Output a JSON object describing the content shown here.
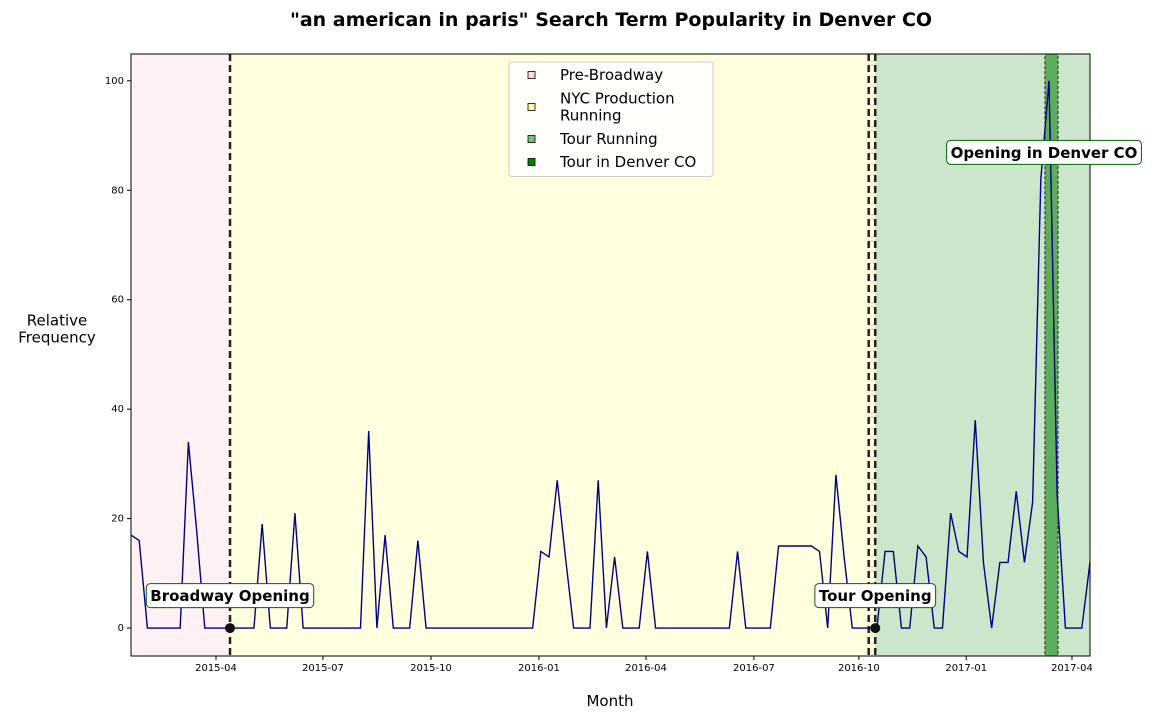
{
  "chart_data": {
    "type": "line",
    "title": "\"an american in paris\" Search Term Popularity in Denver CO",
    "x_label": "Month",
    "y_label": "Relative\nFrequency",
    "xlim": [
      0,
      117
    ],
    "ylim": [
      -5.1,
      104.9
    ],
    "xticks": [
      {
        "value": 10.37,
        "label": "2015-04"
      },
      {
        "value": 23.42,
        "label": "2015-07"
      },
      {
        "value": 36.6,
        "label": "2015-10"
      },
      {
        "value": 49.77,
        "label": "2016-01"
      },
      {
        "value": 62.83,
        "label": "2016-04"
      },
      {
        "value": 76.0,
        "label": "2016-07"
      },
      {
        "value": 88.8,
        "label": "2016-10"
      },
      {
        "value": 101.9,
        "label": "2017-01"
      },
      {
        "value": 114.8,
        "label": "2017-04"
      }
    ],
    "yticks": [
      0,
      20,
      40,
      60,
      80,
      100
    ],
    "color": "#000080",
    "values": [
      17,
      16,
      0,
      0,
      0,
      0,
      0,
      34,
      18,
      0,
      0,
      0,
      0,
      0,
      0,
      0,
      19,
      0,
      0,
      0,
      21,
      0,
      0,
      0,
      0,
      0,
      0,
      0,
      0,
      36,
      0,
      17,
      0,
      0,
      0,
      16,
      0,
      0,
      0,
      0,
      0,
      0,
      0,
      0,
      0,
      0,
      0,
      0,
      0,
      0,
      14,
      13,
      27,
      13,
      0,
      0,
      0,
      27,
      0,
      13,
      0,
      0,
      0,
      14,
      0,
      0,
      0,
      0,
      0,
      0,
      0,
      0,
      0,
      0,
      14,
      0,
      0,
      0,
      0,
      15,
      15,
      15,
      15,
      15,
      14,
      0,
      28,
      13,
      0,
      0,
      0,
      0,
      14,
      14,
      0,
      0,
      15,
      13,
      0,
      0,
      21,
      14,
      13,
      38,
      12,
      0,
      12,
      12,
      25,
      12,
      23,
      82,
      100,
      24,
      0,
      0,
      0,
      12
    ],
    "spans": [
      {
        "name": "Pre-Broadway",
        "color": "#ffc0cb",
        "alpha": 0.22,
        "start": 0,
        "end": 12.08
      },
      {
        "name": "NYC Production\nRunning",
        "color": "#ffff00",
        "alpha": 0.12,
        "start": 12.08,
        "end": 90.8
      },
      {
        "name": "Tour Running",
        "color": "#008000",
        "alpha": 0.2,
        "start": 90.8,
        "end": 117
      },
      {
        "name": "Tour in Denver CO",
        "color": "#008000",
        "alpha": 0.55,
        "start": 111.5,
        "end": 113.1
      }
    ],
    "vlines": [
      12.08,
      90.0,
      90.8
    ],
    "annotations": [
      {
        "text": "Broadway Opening",
        "x": 12.08,
        "y": 0,
        "marker": true
      },
      {
        "text": "Tour Opening",
        "x": 90.8,
        "y": 0,
        "marker": true
      },
      {
        "text": "Opening in Denver CO",
        "x": 112,
        "y": 100,
        "marker": false
      }
    ],
    "legend": "upper center"
  }
}
